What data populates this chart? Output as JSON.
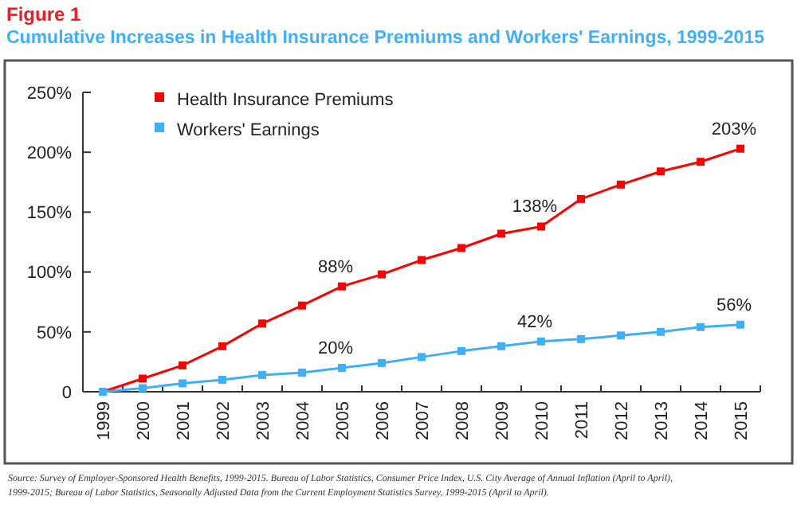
{
  "chart_data": {
    "type": "line",
    "title": "Figure 1",
    "subtitle": "Cumulative Increases in Health Insurance Premiums and Workers' Earnings, 1999-2015",
    "categories": [
      "1999",
      "2000",
      "2001",
      "2002",
      "2003",
      "2004",
      "2005",
      "2006",
      "2007",
      "2008",
      "2009",
      "2010",
      "2011",
      "2012",
      "2013",
      "2014",
      "2015"
    ],
    "series": [
      {
        "name": "Health Insurance Premiums",
        "color": "#ff0000",
        "values": [
          0,
          11,
          22,
          38,
          57,
          72,
          88,
          98,
          110,
          120,
          132,
          138,
          161,
          173,
          184,
          192,
          203
        ],
        "value_labels": [
          null,
          null,
          null,
          null,
          null,
          null,
          "88%",
          null,
          null,
          null,
          null,
          "138%",
          null,
          null,
          null,
          null,
          "203%"
        ]
      },
      {
        "name": "Workers' Earnings",
        "color": "#3fb0f5",
        "values": [
          0,
          3,
          7,
          10,
          14,
          16,
          20,
          24,
          29,
          34,
          38,
          42,
          44,
          47,
          50,
          54,
          56
        ],
        "value_labels": [
          null,
          null,
          null,
          null,
          null,
          null,
          "20%",
          null,
          null,
          null,
          null,
          "42%",
          null,
          null,
          null,
          null,
          "56%"
        ]
      }
    ],
    "ylim": [
      0,
      250
    ],
    "yticks": [
      0,
      {
        "value": 50,
        "label": "50%"
      },
      {
        "value": 100,
        "label": "100%"
      },
      {
        "value": 150,
        "label": "150%"
      },
      {
        "value": 200,
        "label": "200%"
      },
      {
        "value": 250,
        "label": "250%"
      }
    ],
    "grid": false,
    "legend": "top left",
    "marker": "square",
    "line_style": "solid",
    "annotations": [
      "Source: Survey of Employer-Sponsored Health Benefits, 1999-2015. Bureau of Labor Statistics, Consumer Price Index, U.S. City Average of Annual Inflation (April to April), 1999-2015; Bureau of Labor Statistics, Seasonally Adjusted Data from the Current Employment Statistics Survey, 1999-2015 (April to April)."
    ]
  }
}
